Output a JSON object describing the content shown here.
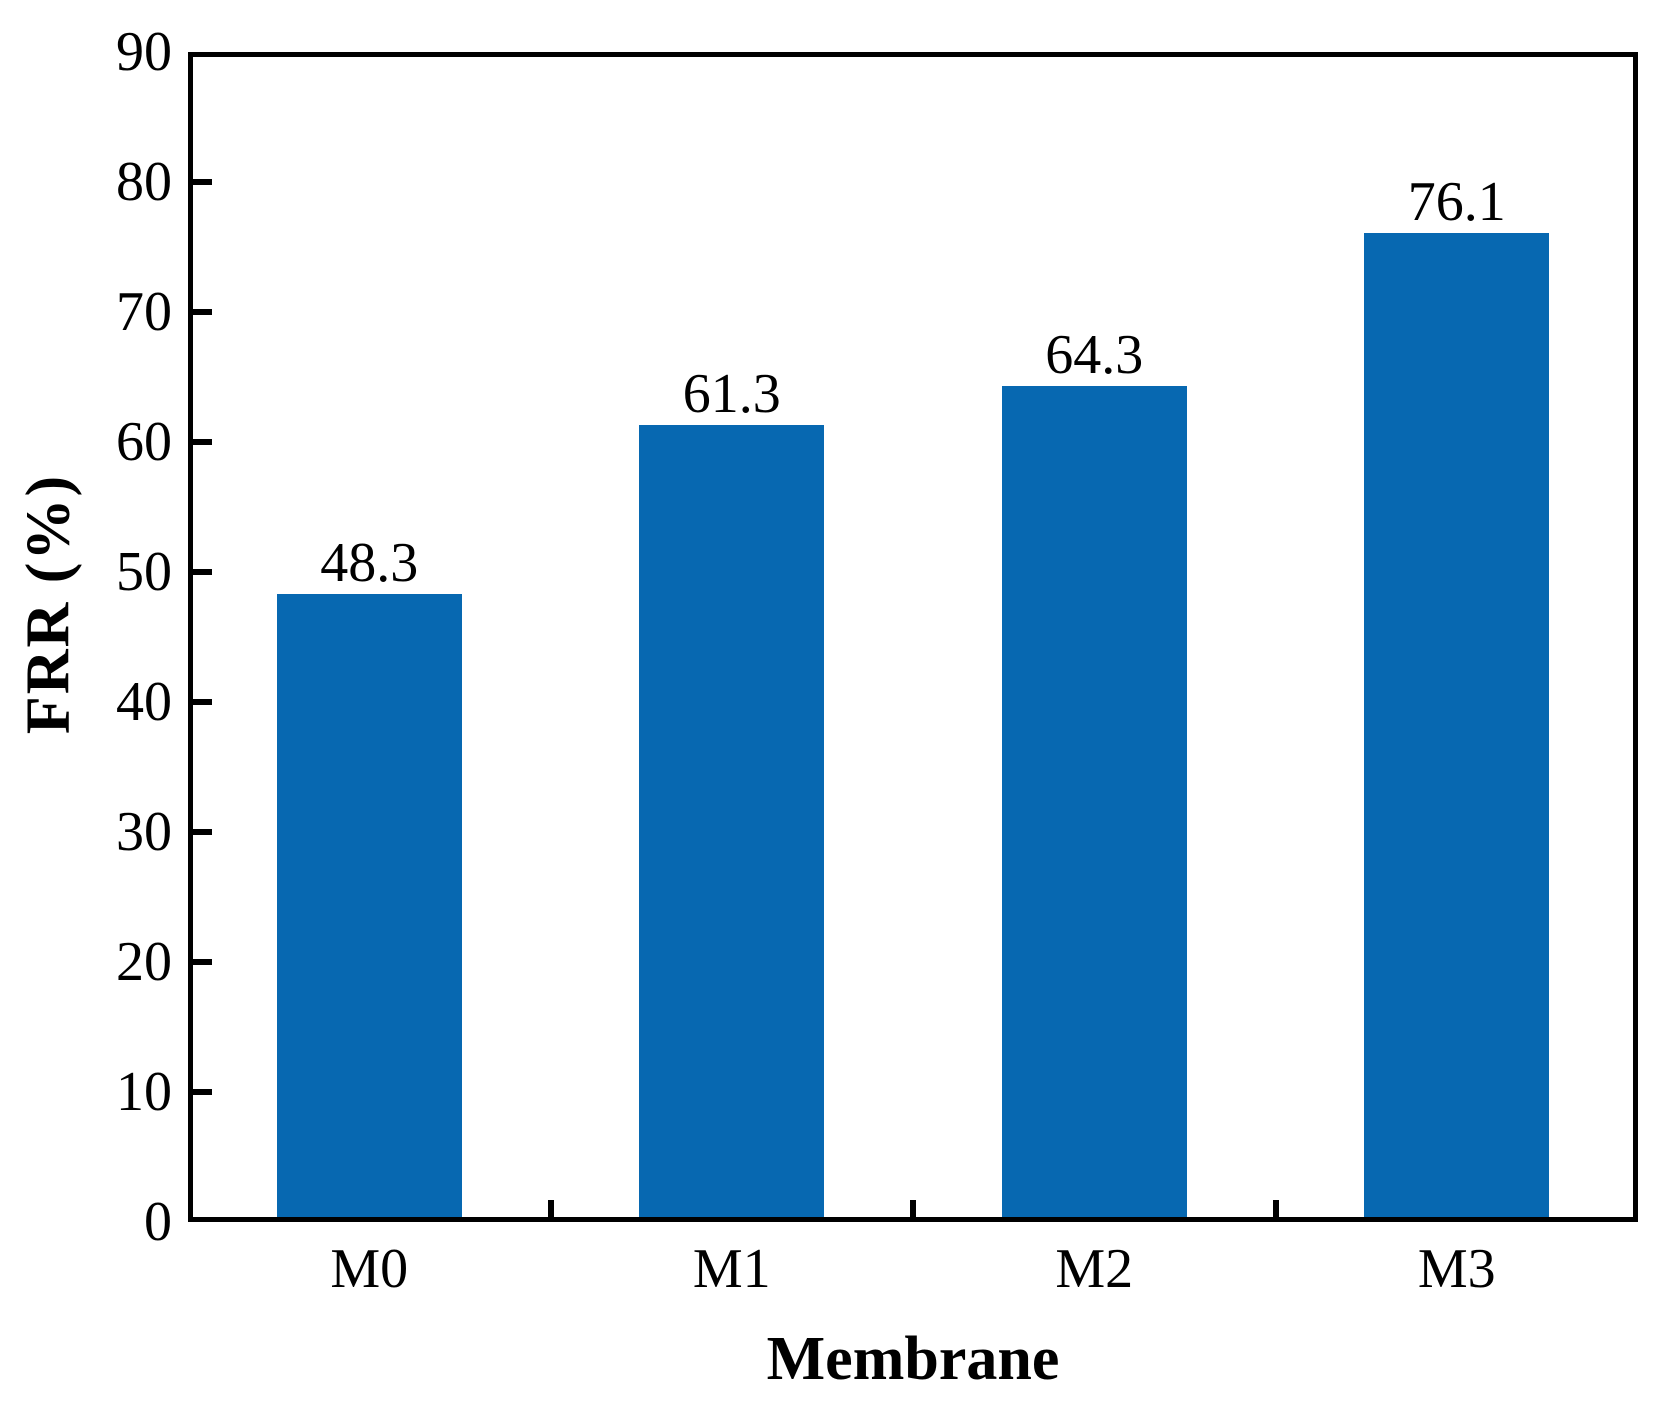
{
  "chart_data": {
    "type": "bar",
    "title": "",
    "categories": [
      "M0",
      "M1",
      "M2",
      "M3"
    ],
    "values": [
      48.3,
      61.3,
      64.3,
      76.1
    ],
    "bar_value_labels": [
      "48.3",
      "61.3",
      "64.3",
      "76.1"
    ],
    "xlabel": "Membrane",
    "ylabel": "FRR (%)",
    "ylim": [
      0,
      90
    ],
    "ytick_step": 10,
    "ytick_labels": [
      "0",
      "10",
      "20",
      "30",
      "40",
      "50",
      "60",
      "70",
      "80",
      "90"
    ],
    "grid": false,
    "legend": "none",
    "bar_color": "#0768B1",
    "axis_color": "#000000",
    "text_color": "#000000",
    "background_color": "#FFFFFF"
  }
}
